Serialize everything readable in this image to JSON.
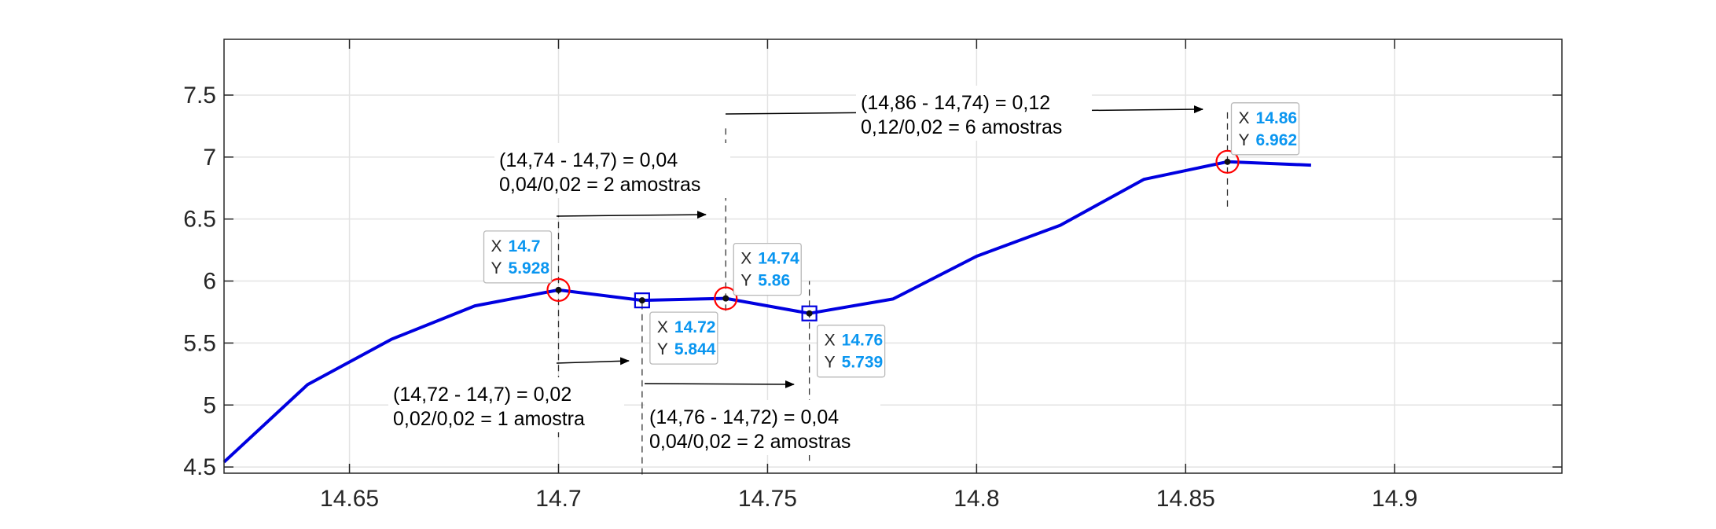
{
  "chart_data": {
    "type": "line",
    "title": "",
    "xlabel": "",
    "ylabel": "",
    "xlim": [
      14.62,
      14.94
    ],
    "ylim": [
      4.45,
      7.95
    ],
    "grid": true,
    "x_ticks": [
      14.65,
      14.7,
      14.75,
      14.8,
      14.85,
      14.9
    ],
    "x_tick_labels": [
      "14.65",
      "14.7",
      "14.75",
      "14.8",
      "14.85",
      "14.9"
    ],
    "y_ticks": [
      4.5,
      5,
      5.5,
      6,
      6.5,
      7,
      7.5
    ],
    "y_tick_labels": [
      "4.5",
      "5",
      "5.5",
      "6",
      "6.5",
      "7",
      "7.5"
    ],
    "series": [
      {
        "color": "#0000e0",
        "x": [
          14.62,
          14.64,
          14.66,
          14.68,
          14.7,
          14.72,
          14.74,
          14.76,
          14.78,
          14.8,
          14.82,
          14.84,
          14.86,
          14.88
        ],
        "values": [
          4.54,
          5.165,
          5.53,
          5.8,
          5.928,
          5.844,
          5.86,
          5.739,
          5.855,
          6.2,
          6.45,
          6.82,
          6.962,
          6.935
        ]
      }
    ],
    "markers": [
      {
        "x": 14.7,
        "y": 5.928,
        "shape": "circle",
        "color": "#ff0000"
      },
      {
        "x": 14.72,
        "y": 5.844,
        "shape": "square",
        "color": "#0000e0"
      },
      {
        "x": 14.74,
        "y": 5.86,
        "shape": "circle",
        "color": "#ff0000"
      },
      {
        "x": 14.76,
        "y": 5.739,
        "shape": "square",
        "color": "#0000e0"
      },
      {
        "x": 14.86,
        "y": 6.962,
        "shape": "circle",
        "color": "#ff0000"
      }
    ],
    "datatips": [
      {
        "x_label": "X",
        "x_value": "14.7",
        "y_label": "Y",
        "y_value": "5.928"
      },
      {
        "x_label": "X",
        "x_value": "14.72",
        "y_label": "Y",
        "y_value": "5.844"
      },
      {
        "x_label": "X",
        "x_value": "14.74",
        "y_label": "Y",
        "y_value": "5.86"
      },
      {
        "x_label": "X",
        "x_value": "14.76",
        "y_label": "Y",
        "y_value": "5.739"
      },
      {
        "x_label": "X",
        "x_value": "14.86",
        "y_label": "Y",
        "y_value": "6.962"
      }
    ],
    "annotations": [
      {
        "line1": "(14,72 - 14,7) = 0,02",
        "line2": "0,02/0,02 = 1 amostra"
      },
      {
        "line1": "(14,74 - 14,7) = 0,04",
        "line2": "0,04/0,02 = 2 amostras"
      },
      {
        "line1": "(14,76 - 14,72) = 0,04",
        "line2": "0,04/0,02 = 2 amostras"
      },
      {
        "line1": "(14,86 - 14,74) = 0,12",
        "line2": "0,12/0,02 = 6 amostras"
      }
    ]
  }
}
